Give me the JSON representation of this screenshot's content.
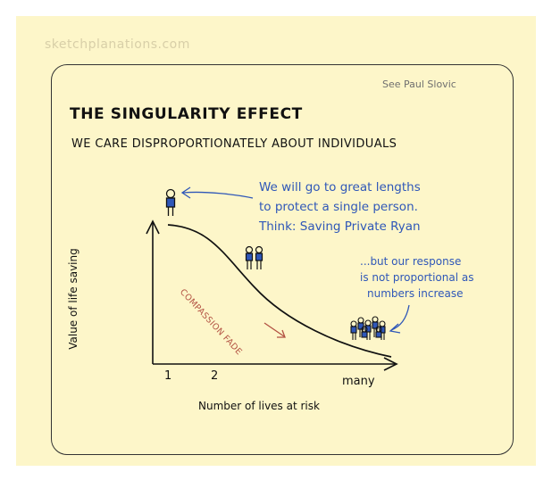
{
  "watermark": "sketchplanations.com",
  "reference": "See Paul Slovic",
  "title": "THE SINGULARITY EFFECT",
  "subtitle": "WE CARE DISPROPORTIONATELY ABOUT INDIVIDUALS",
  "annotation_single": {
    "lines": [
      "We will go to great lengths",
      "to protect a single person.",
      "Think: Saving Private Ryan"
    ]
  },
  "annotation_many": {
    "lines": [
      "...but our response",
      "is not proportional as",
      "numbers increase"
    ]
  },
  "curve_label": "COMPASSION FADE",
  "chart_data": {
    "type": "line",
    "xlabel": "Number of lives at risk",
    "ylabel": "Value of life saving",
    "x_tick_labels": [
      "1",
      "2",
      "many"
    ]
  },
  "colors": {
    "paper": "#fdf6c9",
    "annotation": "#2f57b8",
    "curve_label": "#b25142",
    "ink": "#111111"
  }
}
